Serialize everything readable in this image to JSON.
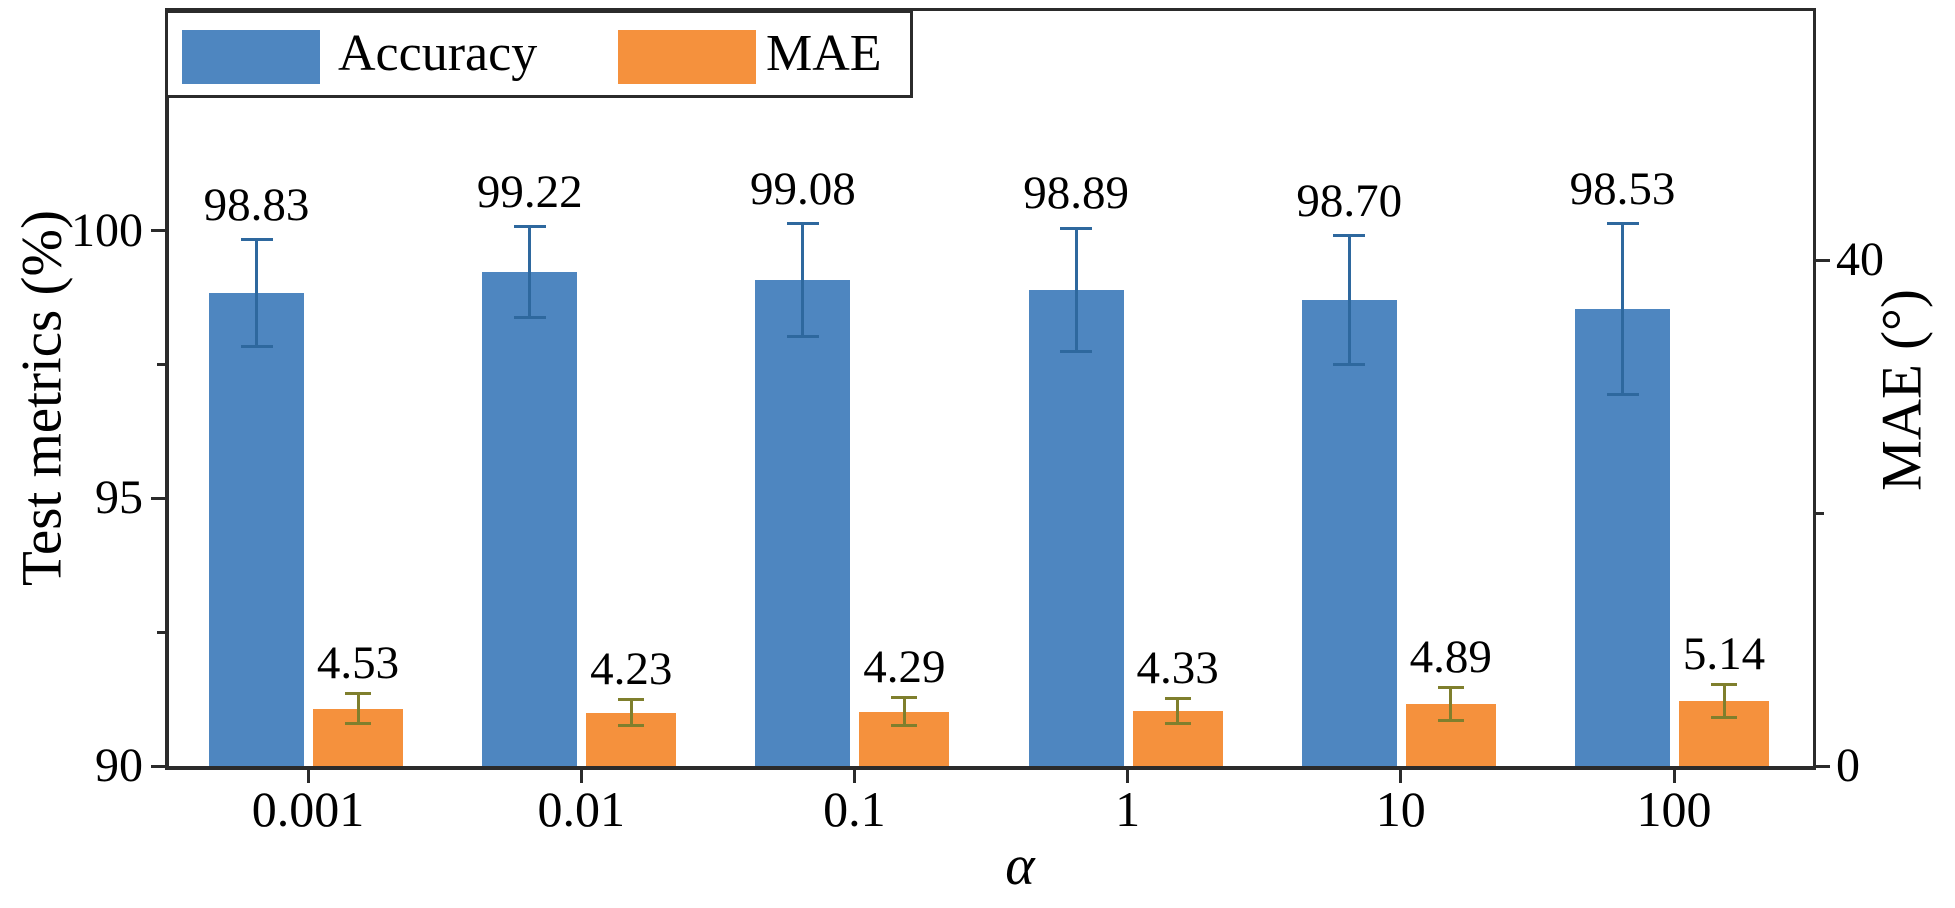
{
  "figure": {
    "background": "#ffffff",
    "spine_color": "#2b2b2b",
    "legend": {
      "entries": [
        {
          "label": "Accuracy",
          "color": "#4e86c0"
        },
        {
          "label": "MAE",
          "color": "#f5913d"
        }
      ]
    },
    "left_axis": {
      "label": "Test metrics (%)",
      "major_ticks": [
        "100",
        "95",
        "90"
      ],
      "minor_ticks": [
        97.5,
        92.5
      ],
      "range": [
        90,
        104.1
      ]
    },
    "right_axis": {
      "label": "MAE (°)",
      "major_ticks": [
        "40",
        "0"
      ],
      "minor_ticks": [
        20
      ],
      "range": [
        0,
        59.7
      ]
    },
    "x_axis": {
      "label": "α",
      "categories": [
        "0.001",
        "0.01",
        "0.1",
        "1",
        "10",
        "100"
      ]
    }
  },
  "chart_data": {
    "type": "bar",
    "title": "",
    "categories": [
      "0.001",
      "0.01",
      "0.1",
      "1",
      "10",
      "100"
    ],
    "xlabel": "α",
    "ylabel_left": "Test metrics (%)",
    "ylabel_right": "MAE (°)",
    "ylim_left": [
      90,
      104
    ],
    "ylim_right": [
      0,
      60
    ],
    "grid": false,
    "legend_position": "top-left",
    "series": [
      {
        "name": "Accuracy",
        "axis": "left",
        "color": "#4e86c0",
        "error_color": "#2e689e",
        "values": [
          "98.83",
          "99.22",
          "99.08",
          "98.89",
          "98.70",
          "98.53"
        ],
        "errors": [
          1.0,
          0.85,
          1.05,
          1.15,
          1.2,
          1.6
        ]
      },
      {
        "name": "MAE",
        "axis": "right",
        "color": "#f5913d",
        "error_color": "#7f7f2d",
        "values": [
          "4.53",
          "4.23",
          "4.29",
          "4.33",
          "4.89",
          "5.14"
        ],
        "errors": [
          1.2,
          1.0,
          1.1,
          1.0,
          1.3,
          1.3
        ]
      }
    ]
  }
}
